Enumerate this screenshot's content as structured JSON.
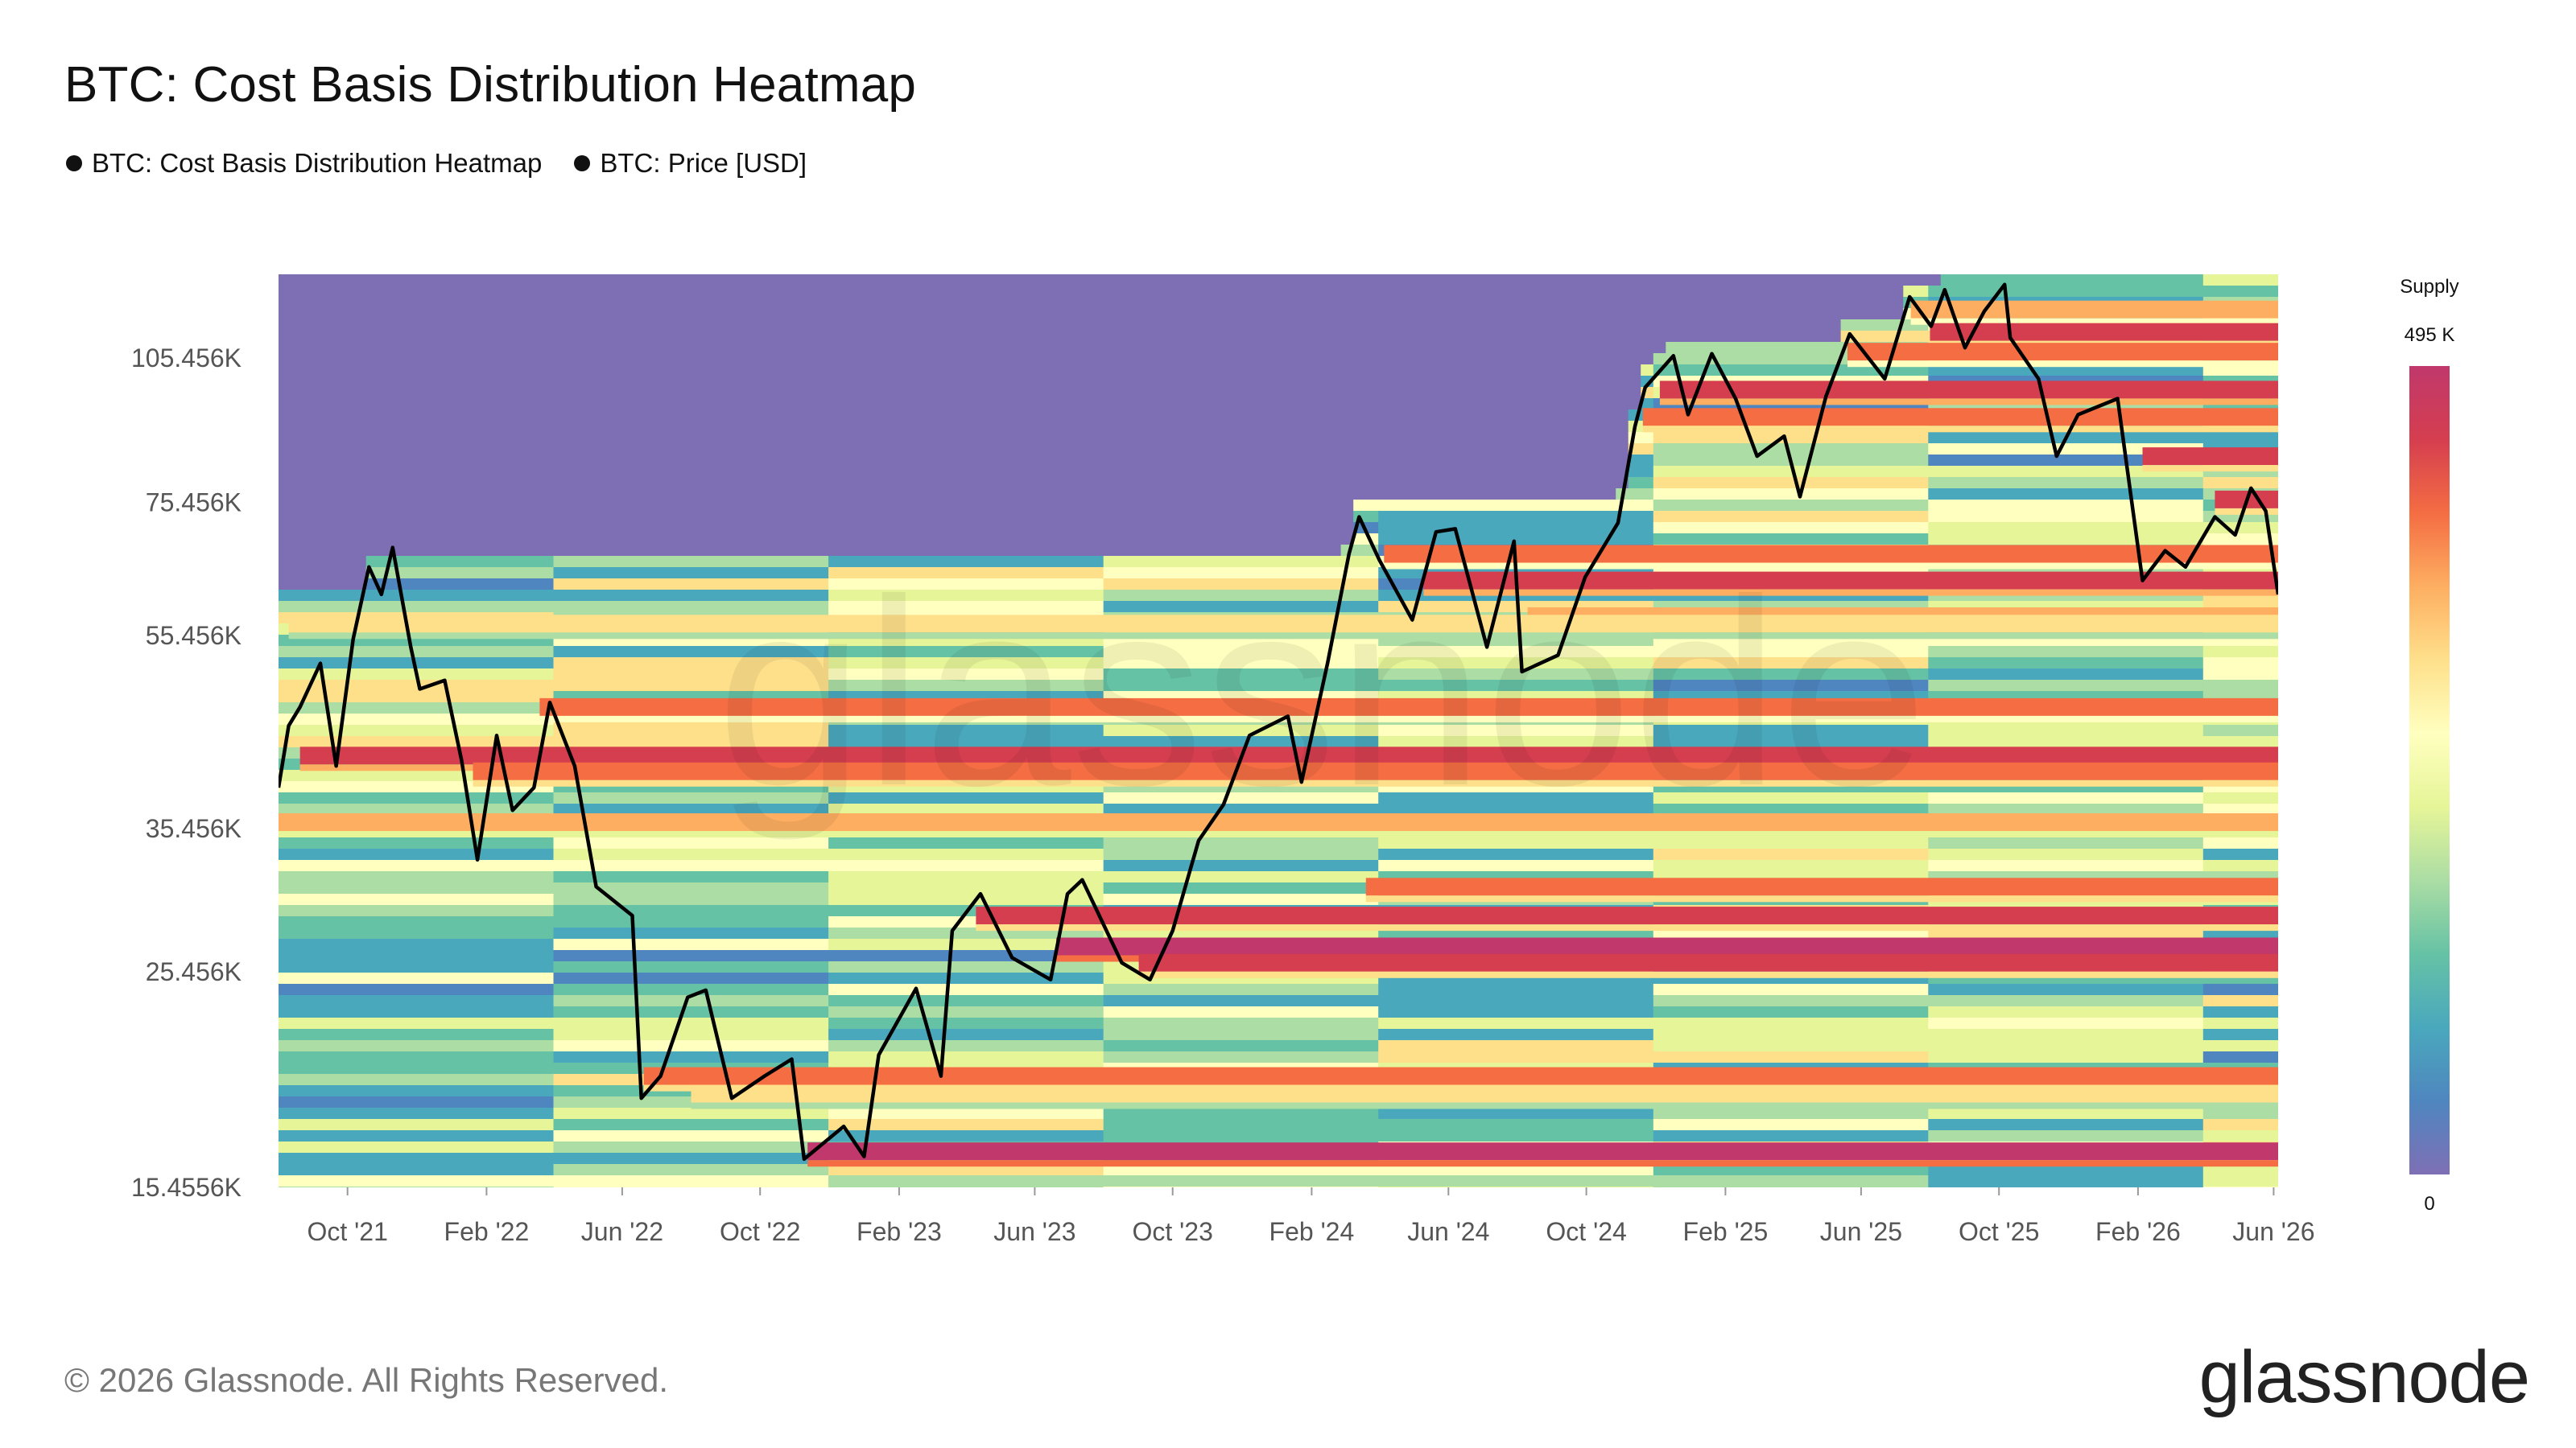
{
  "header": {
    "title": "BTC: Cost Basis Distribution Heatmap",
    "legend": [
      {
        "label": "BTC: Cost Basis Distribution Heatmap",
        "color": "#111111"
      },
      {
        "label": "BTC: Price [USD]",
        "color": "#111111"
      }
    ]
  },
  "footer": {
    "copyright": "© 2026 Glassnode. All Rights Reserved.",
    "brand": "glassnode"
  },
  "colorbar": {
    "title": "Supply",
    "max_label": "495 K",
    "min_label": "0",
    "colors": [
      "#7e6fb5",
      "#4f86bf",
      "#4aa8bd",
      "#66c2a5",
      "#abdda4",
      "#e6f598",
      "#ffffbf",
      "#fee08b",
      "#fdae61",
      "#f46d43",
      "#d53e4f",
      "#c0386c"
    ]
  },
  "chart_data": {
    "type": "heatmap",
    "title": "BTC: Cost Basis Distribution Heatmap",
    "xlabel": "",
    "ylabel": "",
    "y_scale": "log",
    "ylim": [
      15455.6,
      128000
    ],
    "xlim": [
      "2021-08-01",
      "2026-06-05"
    ],
    "x_tick_labels": [
      "Oct '21",
      "Feb '22",
      "Jun '22",
      "Oct '22",
      "Feb '23",
      "Jun '23",
      "Oct '23",
      "Feb '24",
      "Jun '24",
      "Oct '24",
      "Feb '25",
      "Jun '25",
      "Oct '25",
      "Feb '26",
      "Jun '26"
    ],
    "x_tick_dates": [
      "2021-10-01",
      "2022-02-01",
      "2022-06-01",
      "2022-10-01",
      "2023-02-01",
      "2023-06-01",
      "2023-10-01",
      "2024-02-01",
      "2024-06-01",
      "2024-10-01",
      "2025-02-01",
      "2025-06-01",
      "2025-10-01",
      "2026-02-01",
      "2026-06-01"
    ],
    "y_tick_labels": [
      "105.456K",
      "75.456K",
      "55.456K",
      "35.456K",
      "25.456K",
      "15.4556K"
    ],
    "y_tick_values": [
      105456,
      75456,
      55456,
      35456,
      25456,
      15455.6
    ],
    "supply_range": [
      0,
      495000
    ],
    "supply_unit": "BTC",
    "bands": [
      {
        "price": 118000,
        "from": "2025-07-15",
        "intensity": 0.75
      },
      {
        "price": 112000,
        "from": "2025-08-01",
        "intensity": 0.9
      },
      {
        "price": 107000,
        "from": "2025-05-20",
        "intensity": 0.8
      },
      {
        "price": 98000,
        "from": "2024-12-05",
        "intensity": 0.95
      },
      {
        "price": 92000,
        "from": "2024-11-20",
        "intensity": 0.85
      },
      {
        "price": 84000,
        "from": "2026-02-05",
        "intensity": 0.9
      },
      {
        "price": 76000,
        "from": "2026-04-10",
        "intensity": 0.9
      },
      {
        "price": 67000,
        "from": "2024-04-05",
        "intensity": 0.8
      },
      {
        "price": 63000,
        "from": "2024-05-10",
        "intensity": 0.95
      },
      {
        "price": 58000,
        "from": "2024-08-10",
        "intensity": 0.75
      },
      {
        "price": 57000,
        "from": "2021-08-10",
        "intensity": 0.6
      },
      {
        "price": 47000,
        "from": "2022-03-20",
        "intensity": 0.8
      },
      {
        "price": 42000,
        "from": "2021-08-20",
        "intensity": 0.95
      },
      {
        "price": 40500,
        "from": "2022-01-20",
        "intensity": 0.85
      },
      {
        "price": 36000,
        "from": "2021-08-01",
        "intensity": 0.7
      },
      {
        "price": 31000,
        "from": "2024-03-20",
        "intensity": 0.85
      },
      {
        "price": 29000,
        "from": "2023-04-10",
        "intensity": 0.9
      },
      {
        "price": 27000,
        "from": "2023-06-20",
        "intensity": 1.0
      },
      {
        "price": 26000,
        "from": "2023-09-01",
        "intensity": 0.9
      },
      {
        "price": 20000,
        "from": "2022-06-20",
        "intensity": 0.85
      },
      {
        "price": 19200,
        "from": "2022-08-01",
        "intensity": 0.6
      },
      {
        "price": 16800,
        "from": "2022-11-12",
        "intensity": 1.0
      }
    ],
    "price_series": {
      "name": "BTC: Price [USD]",
      "points": [
        [
          "2021-08-01",
          39000
        ],
        [
          "2021-08-10",
          45000
        ],
        [
          "2021-08-20",
          47000
        ],
        [
          "2021-09-07",
          52000
        ],
        [
          "2021-09-21",
          41000
        ],
        [
          "2021-10-06",
          55000
        ],
        [
          "2021-10-20",
          65000
        ],
        [
          "2021-10-31",
          61000
        ],
        [
          "2021-11-10",
          68000
        ],
        [
          "2021-11-26",
          54000
        ],
        [
          "2021-12-04",
          49000
        ],
        [
          "2021-12-26",
          50000
        ],
        [
          "2022-01-10",
          41500
        ],
        [
          "2022-01-24",
          33000
        ],
        [
          "2022-02-10",
          44000
        ],
        [
          "2022-02-24",
          37000
        ],
        [
          "2022-03-15",
          39000
        ],
        [
          "2022-03-29",
          47500
        ],
        [
          "2022-04-20",
          41000
        ],
        [
          "2022-05-09",
          31000
        ],
        [
          "2022-06-10",
          29000
        ],
        [
          "2022-06-18",
          19000
        ],
        [
          "2022-07-05",
          20000
        ],
        [
          "2022-07-29",
          24000
        ],
        [
          "2022-08-14",
          24400
        ],
        [
          "2022-09-06",
          19000
        ],
        [
          "2022-10-05",
          20000
        ],
        [
          "2022-10-29",
          20800
        ],
        [
          "2022-11-09",
          16500
        ],
        [
          "2022-12-14",
          17800
        ],
        [
          "2023-01-01",
          16600
        ],
        [
          "2023-01-14",
          21000
        ],
        [
          "2023-02-16",
          24500
        ],
        [
          "2023-03-10",
          20000
        ],
        [
          "2023-03-20",
          28000
        ],
        [
          "2023-04-14",
          30500
        ],
        [
          "2023-05-12",
          26300
        ],
        [
          "2023-06-15",
          25000
        ],
        [
          "2023-06-30",
          30500
        ],
        [
          "2023-07-13",
          31500
        ],
        [
          "2023-08-17",
          26000
        ],
        [
          "2023-09-11",
          25000
        ],
        [
          "2023-10-01",
          28000
        ],
        [
          "2023-10-24",
          34500
        ],
        [
          "2023-11-15",
          37500
        ],
        [
          "2023-12-08",
          44000
        ],
        [
          "2024-01-11",
          46000
        ],
        [
          "2024-01-23",
          39500
        ],
        [
          "2024-02-15",
          52000
        ],
        [
          "2024-03-05",
          67000
        ],
        [
          "2024-03-14",
          73000
        ],
        [
          "2024-04-01",
          66000
        ],
        [
          "2024-04-30",
          57500
        ],
        [
          "2024-05-21",
          70500
        ],
        [
          "2024-06-07",
          71000
        ],
        [
          "2024-07-05",
          54000
        ],
        [
          "2024-07-29",
          69000
        ],
        [
          "2024-08-05",
          51000
        ],
        [
          "2024-09-06",
          53000
        ],
        [
          "2024-09-30",
          63500
        ],
        [
          "2024-10-29",
          72000
        ],
        [
          "2024-11-13",
          90000
        ],
        [
          "2024-11-22",
          98500
        ],
        [
          "2024-12-17",
          106000
        ],
        [
          "2024-12-30",
          92500
        ],
        [
          "2025-01-20",
          106500
        ],
        [
          "2025-02-10",
          96000
        ],
        [
          "2025-03-01",
          84000
        ],
        [
          "2025-03-25",
          88000
        ],
        [
          "2025-04-08",
          76500
        ],
        [
          "2025-05-01",
          96500
        ],
        [
          "2025-05-22",
          111500
        ],
        [
          "2025-06-22",
          100500
        ],
        [
          "2025-07-14",
          121500
        ],
        [
          "2025-08-02",
          113500
        ],
        [
          "2025-08-14",
          123500
        ],
        [
          "2025-09-01",
          108000
        ],
        [
          "2025-09-18",
          117500
        ],
        [
          "2025-10-06",
          125000
        ],
        [
          "2025-10-11",
          110500
        ],
        [
          "2025-11-05",
          100500
        ],
        [
          "2025-11-21",
          84000
        ],
        [
          "2025-12-10",
          92500
        ],
        [
          "2026-01-14",
          96000
        ],
        [
          "2026-02-05",
          63000
        ],
        [
          "2026-02-25",
          67500
        ],
        [
          "2026-03-15",
          65000
        ],
        [
          "2026-04-10",
          73000
        ],
        [
          "2026-04-28",
          70000
        ],
        [
          "2026-05-12",
          78000
        ],
        [
          "2026-05-25",
          74000
        ],
        [
          "2026-06-05",
          61000
        ]
      ]
    }
  }
}
